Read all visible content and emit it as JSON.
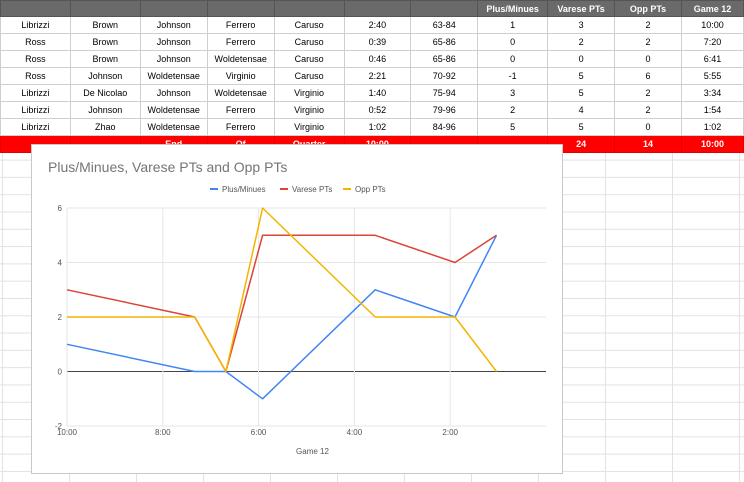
{
  "sheet": {
    "headers": [
      "",
      "",
      "",
      "",
      "",
      "",
      "",
      "Plus/Minues",
      "Varese PTs",
      "Opp PTs",
      "Game 12"
    ],
    "rows": [
      [
        "Librizzi",
        "Brown",
        "Johnson",
        "Ferrero",
        "Caruso",
        "2:40",
        "63-84",
        "1",
        "3",
        "2",
        "10:00"
      ],
      [
        "Ross",
        "Brown",
        "Johnson",
        "Ferrero",
        "Caruso",
        "0:39",
        "65-86",
        "0",
        "2",
        "2",
        "7:20"
      ],
      [
        "Ross",
        "Brown",
        "Johnson",
        "Woldetensae",
        "Caruso",
        "0:46",
        "65-86",
        "0",
        "0",
        "0",
        "6:41"
      ],
      [
        "Ross",
        "Johnson",
        "Woldetensae",
        "Virginio",
        "Caruso",
        "2:21",
        "70-92",
        "-1",
        "5",
        "6",
        "5:55"
      ],
      [
        "Librizzi",
        "De Nicolao",
        "Johnson",
        "Woldetensae",
        "Virginio",
        "1:40",
        "75-94",
        "3",
        "5",
        "2",
        "3:34"
      ],
      [
        "Librizzi",
        "Johnson",
        "Woldetensae",
        "Ferrero",
        "Virginio",
        "0:52",
        "79-96",
        "2",
        "4",
        "2",
        "1:54"
      ],
      [
        "Librizzi",
        "Zhao",
        "Woldetensae",
        "Ferrero",
        "Virginio",
        "1:02",
        "84-96",
        "5",
        "5",
        "0",
        "1:02"
      ]
    ],
    "total_row": [
      "",
      "",
      "End",
      "Of",
      "Quarter",
      "10:00",
      "",
      "",
      "24",
      "14",
      "10:00"
    ]
  },
  "chart_data": {
    "type": "line",
    "title": "Plus/Minues, Varese PTs and Opp PTs",
    "xlabel": "Game 12",
    "ylabel": "",
    "x": [
      "10:00",
      "7:20",
      "6:41",
      "5:55",
      "3:34",
      "1:54",
      "1:02"
    ],
    "x_ticks": [
      "10:00",
      "8:00",
      "6:00",
      "4:00",
      "2:00"
    ],
    "x_reversed": true,
    "ylim": [
      -2,
      6
    ],
    "y_ticks": [
      -2,
      0,
      2,
      4,
      6
    ],
    "grid": true,
    "legend_position": "top",
    "series": [
      {
        "name": "Plus/Minues",
        "color": "#4285f4",
        "values": [
          1,
          0,
          0,
          -1,
          3,
          2,
          5
        ]
      },
      {
        "name": "Varese PTs",
        "color": "#db4437",
        "values": [
          3,
          2,
          0,
          5,
          5,
          4,
          5
        ]
      },
      {
        "name": "Opp PTs",
        "color": "#f4b400",
        "values": [
          2,
          2,
          0,
          6,
          2,
          2,
          0
        ]
      }
    ]
  }
}
